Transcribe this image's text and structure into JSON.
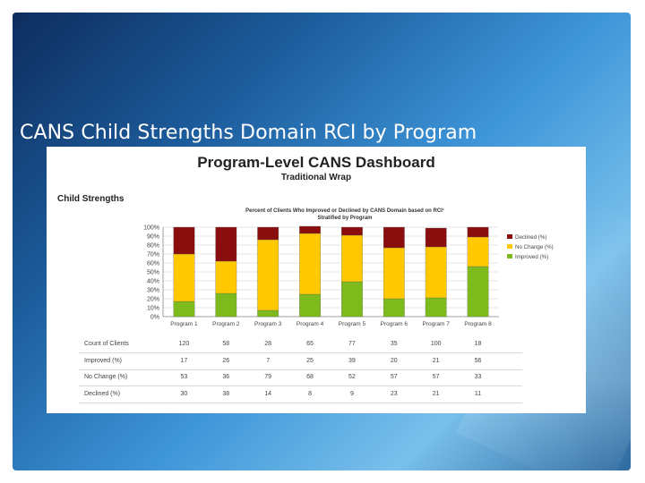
{
  "slide": {
    "title": "CANS Child Strengths Domain RCI by Program"
  },
  "dashboard": {
    "title": "Program-Level CANS Dashboard",
    "subtitle": "Traditional Wrap",
    "section": "Child Strengths"
  },
  "chart_data": {
    "type": "bar",
    "stacked": true,
    "title": "Percent of Clients Who Improved or Declined by CANS Domain based on RCI¹",
    "subtitle": "Stratified by Program",
    "categories": [
      "Program 1",
      "Program 2",
      "Program 3",
      "Program 4",
      "Program 5",
      "Program 6",
      "Program 7",
      "Program 8"
    ],
    "y_ticks": [
      "0%",
      "10%",
      "20%",
      "30%",
      "40%",
      "50%",
      "60%",
      "70%",
      "80%",
      "90%",
      "100%"
    ],
    "ylim": [
      0,
      100
    ],
    "series": [
      {
        "name": "Improved (%)",
        "color": "#7dba1c",
        "values": [
          17,
          26,
          7,
          25,
          39,
          20,
          21,
          56
        ]
      },
      {
        "name": "No Change (%)",
        "color": "#ffc800",
        "values": [
          53,
          36,
          79,
          68,
          52,
          57,
          57,
          33
        ]
      },
      {
        "name": "Declined (%)",
        "color": "#8b0e0e",
        "values": [
          30,
          38,
          14,
          8,
          9,
          23,
          21,
          11
        ]
      }
    ],
    "legend_order": [
      "Declined (%)",
      "No Change (%)",
      "Improved (%)"
    ],
    "legend_position": "right",
    "table": {
      "rows": [
        {
          "label": "Count of Clients",
          "values": [
            "120",
            "58",
            "28",
            "65",
            "77",
            "35",
            "100",
            "18"
          ]
        },
        {
          "label": "Improved (%)",
          "values": [
            "17",
            "26",
            "7",
            "25",
            "39",
            "20",
            "21",
            "56"
          ]
        },
        {
          "label": "No Change (%)",
          "values": [
            "53",
            "36",
            "79",
            "68",
            "52",
            "57",
            "57",
            "33"
          ]
        },
        {
          "label": "Declined (%)",
          "values": [
            "30",
            "38",
            "14",
            "8",
            "9",
            "23",
            "21",
            "11"
          ]
        }
      ]
    }
  }
}
